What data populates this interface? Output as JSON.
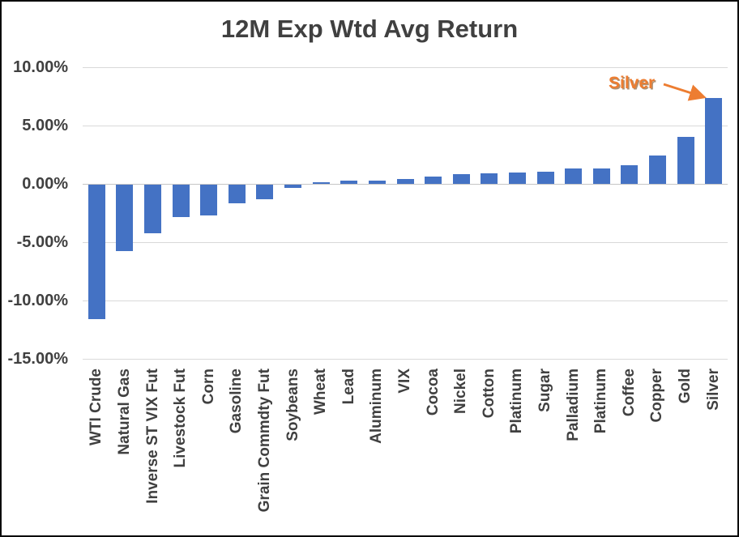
{
  "chart_data": {
    "type": "bar",
    "title": "12M Exp Wtd Avg Return",
    "xlabel": "",
    "ylabel": "",
    "ylim": [
      -15,
      10
    ],
    "grid": true,
    "legend": "none",
    "bar_color": "#4472C4",
    "y_ticks": [
      {
        "label": "10.00%",
        "value": 10
      },
      {
        "label": "5.00%",
        "value": 5
      },
      {
        "label": "0.00%",
        "value": 0
      },
      {
        "label": "-5.00%",
        "value": -5
      },
      {
        "label": "-10.00%",
        "value": -10
      },
      {
        "label": "-15.00%",
        "value": -15
      }
    ],
    "categories": [
      "WTI Crude",
      "Natural Gas",
      "Inverse ST VIX Fut",
      "Livestock Fut",
      "Corn",
      "Gasoline",
      "Grain Commdty Fut",
      "Soybeans",
      "Wheat",
      "Lead",
      "Aluminum",
      "VIX",
      "Cocoa",
      "Nickel",
      "Cotton",
      "Platinum",
      "Sugar",
      "Palladium",
      "Platinum",
      "Coffee",
      "Copper",
      "Gold",
      "Silver"
    ],
    "values": [
      -11.5,
      -5.7,
      -4.2,
      -2.75,
      -2.65,
      -1.6,
      -1.25,
      -0.25,
      0.15,
      0.25,
      0.3,
      0.45,
      0.65,
      0.85,
      0.9,
      1.0,
      1.05,
      1.35,
      1.35,
      1.6,
      2.4,
      4.05,
      7.35
    ],
    "value_unit": "%",
    "annotation": {
      "text": "Silver",
      "color": "#ED7D31",
      "target_category": "Silver"
    }
  }
}
